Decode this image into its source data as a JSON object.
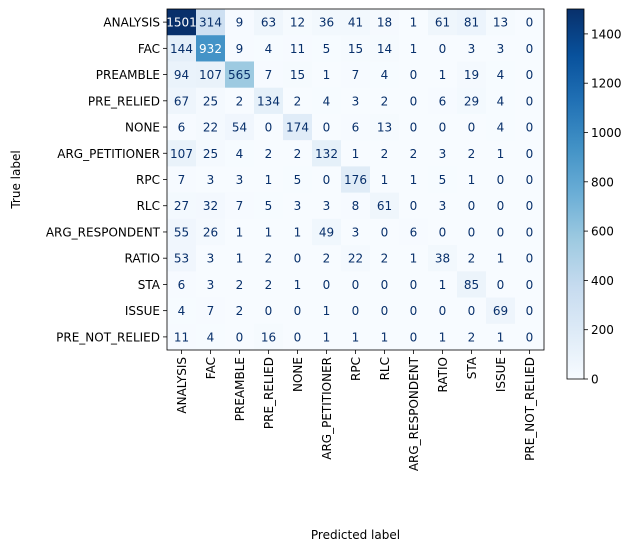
{
  "chart_data": {
    "type": "heatmap",
    "title": "",
    "xlabel": "Predicted label",
    "ylabel": "True label",
    "labels": [
      "ANALYSIS",
      "FAC",
      "PREAMBLE",
      "PRE_RELIED",
      "NONE",
      "ARG_PETITIONER",
      "RPC",
      "RLC",
      "ARG_RESPONDENT",
      "RATIO",
      "STA",
      "ISSUE",
      "PRE_NOT_RELIED"
    ],
    "matrix": [
      [
        1501,
        314,
        9,
        63,
        12,
        36,
        41,
        18,
        1,
        61,
        81,
        13,
        0
      ],
      [
        144,
        932,
        9,
        4,
        11,
        5,
        15,
        14,
        1,
        0,
        3,
        3,
        0
      ],
      [
        94,
        107,
        565,
        7,
        15,
        1,
        7,
        4,
        0,
        1,
        19,
        4,
        0
      ],
      [
        67,
        25,
        2,
        134,
        2,
        4,
        3,
        2,
        0,
        6,
        29,
        4,
        0
      ],
      [
        6,
        22,
        54,
        0,
        174,
        0,
        6,
        13,
        0,
        0,
        0,
        4,
        0
      ],
      [
        107,
        25,
        4,
        2,
        2,
        132,
        1,
        2,
        2,
        3,
        2,
        1,
        0
      ],
      [
        7,
        3,
        3,
        1,
        5,
        0,
        176,
        1,
        1,
        5,
        1,
        0,
        0
      ],
      [
        27,
        32,
        7,
        5,
        3,
        3,
        8,
        61,
        0,
        3,
        0,
        0,
        0
      ],
      [
        55,
        26,
        1,
        1,
        1,
        49,
        3,
        0,
        6,
        0,
        0,
        0,
        0
      ],
      [
        53,
        3,
        1,
        2,
        0,
        2,
        22,
        2,
        1,
        38,
        2,
        1,
        0
      ],
      [
        6,
        3,
        2,
        2,
        1,
        0,
        0,
        0,
        0,
        1,
        85,
        0,
        0
      ],
      [
        4,
        7,
        2,
        0,
        0,
        1,
        0,
        0,
        0,
        0,
        0,
        69,
        0
      ],
      [
        11,
        4,
        0,
        16,
        0,
        1,
        1,
        1,
        0,
        1,
        2,
        1,
        0
      ]
    ],
    "colorbar": {
      "colormap": "Blues",
      "range": [
        0,
        1501
      ],
      "ticks": [
        0,
        200,
        400,
        600,
        800,
        1000,
        1200,
        1400
      ]
    },
    "grid": false
  }
}
